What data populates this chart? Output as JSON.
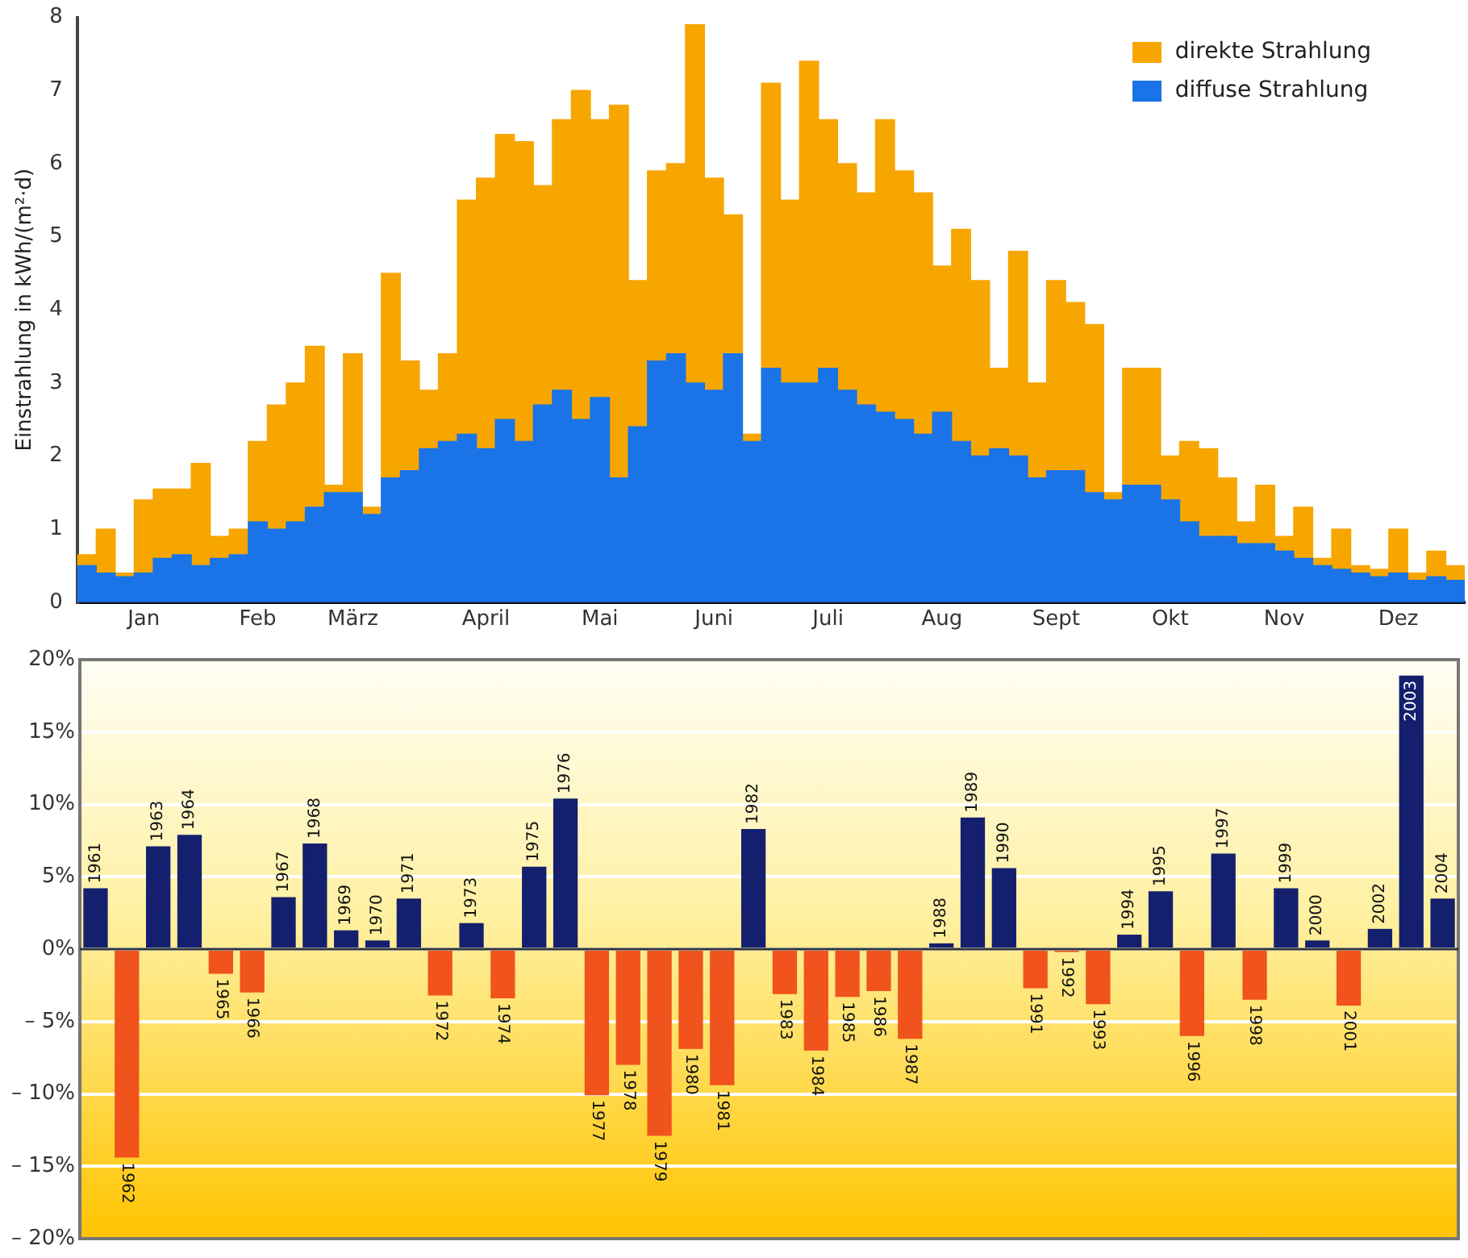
{
  "chart_data": [
    {
      "type": "bar",
      "ylabel": "Einstrahlung in kWh/(m²·d)",
      "stacked": true,
      "legend": "top right",
      "categories": [
        null,
        null,
        null,
        "Jan",
        null,
        null,
        null,
        null,
        null,
        "Feb",
        null,
        null,
        null,
        null,
        "März",
        null,
        null,
        null,
        null,
        null,
        null,
        "April",
        null,
        null,
        null,
        null,
        null,
        "Mai",
        null,
        null,
        null,
        null,
        null,
        "Juni",
        null,
        null,
        null,
        null,
        null,
        "Juli",
        null,
        null,
        null,
        null,
        null,
        "Aug",
        null,
        null,
        null,
        null,
        null,
        "Sept",
        null,
        null,
        null,
        null,
        null,
        "Okt",
        null,
        null,
        null,
        null,
        null,
        "Nov",
        null,
        null,
        null,
        null,
        null,
        "Dez",
        null,
        null,
        null
      ],
      "ylim": [
        0,
        8
      ],
      "yticks": [
        0,
        1,
        2,
        3,
        4,
        5,
        6,
        7,
        8
      ],
      "series": [
        {
          "name": "diffuse Strahlung",
          "color": "#1a74e8",
          "values": [
            0.5,
            0.4,
            0.35,
            0.4,
            0.6,
            0.65,
            0.5,
            0.6,
            0.65,
            1.1,
            1.0,
            1.1,
            1.3,
            1.5,
            1.5,
            1.2,
            1.7,
            1.8,
            2.1,
            2.2,
            2.3,
            2.1,
            2.5,
            2.2,
            2.7,
            2.9,
            2.5,
            2.8,
            1.7,
            2.4,
            3.3,
            3.4,
            3.0,
            2.9,
            3.4,
            2.2,
            3.2,
            3.0,
            3.0,
            3.2,
            2.9,
            2.7,
            2.6,
            2.5,
            2.3,
            2.6,
            2.2,
            2.0,
            2.1,
            2.0,
            1.7,
            1.8,
            1.8,
            1.5,
            1.4,
            1.6,
            1.6,
            1.4,
            1.1,
            0.9,
            0.9,
            0.8,
            0.8,
            0.7,
            0.6,
            0.5,
            0.45,
            0.4,
            0.35,
            0.4,
            0.3,
            0.35,
            0.3
          ]
        },
        {
          "name": "direkte Strahlung",
          "color": "#f7a600",
          "values": [
            0.15,
            0.6,
            0.05,
            1.0,
            0.95,
            0.9,
            1.4,
            0.3,
            0.35,
            1.1,
            1.7,
            1.9,
            2.2,
            0.1,
            1.9,
            0.1,
            2.8,
            1.5,
            0.8,
            1.2,
            3.2,
            3.7,
            3.9,
            4.1,
            3.0,
            3.7,
            4.5,
            3.8,
            5.1,
            2.0,
            2.6,
            2.6,
            4.9,
            2.9,
            1.9,
            0.1,
            3.9,
            2.5,
            4.4,
            3.4,
            3.1,
            2.9,
            4.0,
            3.4,
            3.3,
            2.0,
            2.9,
            2.4,
            1.1,
            2.8,
            1.3,
            2.6,
            2.3,
            2.3,
            0.1,
            1.6,
            1.6,
            0.6,
            1.1,
            1.2,
            0.8,
            0.3,
            0.8,
            0.2,
            0.7,
            0.1,
            0.55,
            0.1,
            0.1,
            0.6,
            0.1,
            0.35,
            0.2
          ]
        }
      ]
    },
    {
      "type": "bar",
      "grid": "y",
      "categories": [
        "1961",
        "1962",
        "1963",
        "1964",
        "1965",
        "1966",
        "1967",
        "1968",
        "1969",
        "1970",
        "1971",
        "1972",
        "1973",
        "1974",
        "1975",
        "1976",
        "1977",
        "1978",
        "1979",
        "1980",
        "1981",
        "1982",
        "1983",
        "1984",
        "1985",
        "1986",
        "1987",
        "1988",
        "1989",
        "1990",
        "1991",
        "1992",
        "1993",
        "1994",
        "1995",
        "1996",
        "1997",
        "1998",
        "1999",
        "2000",
        "2001",
        "2002",
        "2003",
        "2004"
      ],
      "values": [
        4.2,
        -14.4,
        7.1,
        7.9,
        -1.7,
        -3.0,
        3.6,
        7.3,
        1.3,
        0.6,
        3.5,
        -3.2,
        1.8,
        -3.4,
        5.7,
        10.4,
        -10.1,
        -8.0,
        -12.9,
        -6.9,
        -9.4,
        8.3,
        -3.1,
        -7.0,
        -3.3,
        -2.9,
        -6.2,
        0.4,
        9.1,
        5.6,
        -2.7,
        -0.2,
        -3.8,
        1.0,
        4.0,
        -6.0,
        6.6,
        -3.5,
        4.2,
        0.6,
        -3.9,
        1.4,
        18.9,
        3.5
      ],
      "colors": [
        "#14206e",
        "#f0531c",
        "#14206e",
        "#14206e",
        "#f0531c",
        "#f0531c",
        "#14206e",
        "#14206e",
        "#14206e",
        "#14206e",
        "#14206e",
        "#f0531c",
        "#14206e",
        "#f0531c",
        "#14206e",
        "#14206e",
        "#f0531c",
        "#f0531c",
        "#f0531c",
        "#f0531c",
        "#f0531c",
        "#14206e",
        "#f0531c",
        "#f0531c",
        "#f0531c",
        "#f0531c",
        "#f0531c",
        "#14206e",
        "#14206e",
        "#14206e",
        "#f0531c",
        "#f0531c",
        "#f0531c",
        "#14206e",
        "#14206e",
        "#f0531c",
        "#14206e",
        "#f0531c",
        "#14206e",
        "#14206e",
        "#f0531c",
        "#14206e",
        "#14206e",
        "#14206e"
      ],
      "ylim": [
        -20,
        20
      ],
      "yticks": [
        {
          "value": -20,
          "label": "– 20%"
        },
        {
          "value": -15,
          "label": "– 15%"
        },
        {
          "value": -10,
          "label": "– 10%"
        },
        {
          "value": -5,
          "label": "– 5%"
        },
        {
          "value": 0,
          "label": "0%"
        },
        {
          "value": 5,
          "label": "5%"
        },
        {
          "value": 10,
          "label": "10%"
        },
        {
          "value": 15,
          "label": "15%"
        },
        {
          "value": 20,
          "label": "20%"
        }
      ]
    }
  ]
}
